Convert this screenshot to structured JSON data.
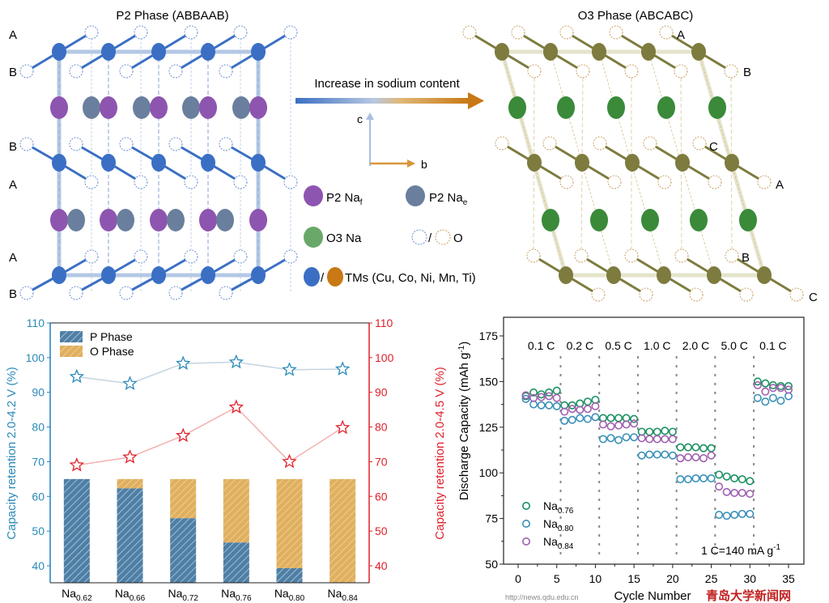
{
  "diagram": {
    "p2_title": "P2 Phase (ABBAAB)",
    "o3_title": "O3 Phase (ABCABC)",
    "p2_layer_labels": [
      "A",
      "B",
      "B",
      "A",
      "A",
      "B"
    ],
    "o3_layer_labels": [
      "A",
      "B",
      "C",
      "A",
      "B",
      "C"
    ],
    "arrow_label": "Increase in sodium content",
    "axis_c": "c",
    "axis_b": "b",
    "legend": {
      "p2_naf": "P2 Na",
      "p2_naf_sub": "f",
      "p2_nae": "P2 Na",
      "p2_nae_sub": "e",
      "o3_na": "O3 Na",
      "slash": "/",
      "o_label": "O",
      "tm_label": "TMs (Cu, Co, Ni, Mn, Ti)"
    },
    "colors": {
      "p2_tm": "#3a6fc4",
      "o3_tm": "#7d7b3e",
      "p2_naf": "#8e55b0",
      "p2_nae": "#6a7f9e",
      "o3_na": "#3a8a3a",
      "tm_orange": "#c87814",
      "o_p2": "#6a8fd0",
      "o_o3": "#c9a060"
    }
  },
  "chart_data": [
    {
      "type": "bar+line",
      "categories": [
        "Na",
        "Na",
        "Na",
        "Na",
        "Na",
        "Na"
      ],
      "category_subs": [
        "0.62",
        "0.66",
        "0.72",
        "0.76",
        "0.80",
        "0.84"
      ],
      "ylabel_left": "Capacity retention 2.0-4.2 V (%)",
      "ylabel_right": "Capacity retention 2.0-4.5 V (%)",
      "ylim": [
        35,
        110
      ],
      "yticks": [
        40,
        50,
        60,
        70,
        80,
        90,
        100,
        110
      ],
      "legend": [
        "P Phase",
        "O Phase"
      ],
      "legend_placement": "top-left",
      "bars": {
        "top": 65,
        "p_phase_top": [
          65,
          62.3,
          53.7,
          46.7,
          39.3,
          35
        ]
      },
      "series": [
        {
          "axis": "left",
          "color": "#2a8ab8",
          "values": [
            94.5,
            92.5,
            98.3,
            98.7,
            96.5,
            96.7
          ]
        },
        {
          "axis": "right",
          "color": "#e0202a",
          "values": [
            69.0,
            71.3,
            77.5,
            85.7,
            70.0,
            79.8
          ]
        }
      ],
      "colors": {
        "p_phase": "#4f7fa5",
        "o_phase": "#e0b060",
        "left_axis": "#1f7fc0",
        "right_axis": "#e0202a"
      }
    },
    {
      "type": "scatter",
      "xlabel": "Cycle Number",
      "ylabel": "Discharge Capacity (mAh g",
      "ylabel_sup": "-1",
      "ylabel_end": ")",
      "xlim": [
        -2,
        37
      ],
      "ylim": [
        50,
        184
      ],
      "xticks": [
        0,
        5,
        10,
        15,
        20,
        25,
        30,
        35
      ],
      "yticks": [
        50,
        75,
        100,
        125,
        150,
        175
      ],
      "rate_labels": [
        "0.1 C",
        "0.2 C",
        "0.5 C",
        "1.0 C",
        "2.0 C",
        "5.0 C",
        "0.1 C"
      ],
      "annotation": "1 C=140 mA g",
      "annotation_sup": "-1",
      "legend_placement": "bottom-left",
      "x": [
        1,
        2,
        3,
        4,
        5,
        6,
        7,
        8,
        9,
        10,
        11,
        12,
        13,
        14,
        15,
        16,
        17,
        18,
        19,
        20,
        21,
        22,
        23,
        24,
        25,
        26,
        27,
        28,
        29,
        30,
        31,
        32,
        33,
        34,
        35
      ],
      "series": [
        {
          "name": "Na",
          "sub": "0.76",
          "color": "#1a9060",
          "values": [
            142,
            144,
            143,
            144,
            145,
            137,
            137,
            138,
            139,
            140,
            130,
            130,
            130,
            130,
            129.5,
            122.5,
            122.5,
            122.5,
            123,
            122.5,
            114,
            114,
            114,
            113.5,
            113.5,
            99,
            98,
            97,
            96.5,
            95.5,
            150,
            149,
            148,
            147.5,
            147.5
          ]
        },
        {
          "name": "Na",
          "sub": "0.80",
          "color": "#3a90b8",
          "values": [
            140.5,
            137.5,
            137,
            137,
            136.5,
            128.5,
            129,
            130,
            129.5,
            130.5,
            118.5,
            119,
            118,
            119.5,
            119.5,
            109.5,
            110,
            110,
            110,
            109.5,
            96.5,
            96.5,
            97,
            97,
            97,
            77,
            76.5,
            77,
            77.5,
            77.5,
            141,
            139,
            141,
            139.5,
            142
          ]
        },
        {
          "name": "Na",
          "sub": "0.84",
          "color": "#a060b0",
          "values": [
            142.5,
            141,
            141.5,
            142,
            141,
            133.5,
            135,
            134.5,
            135,
            136.5,
            126.5,
            125.5,
            126,
            126.5,
            127,
            119,
            118.5,
            118.5,
            118.5,
            118.5,
            108,
            108.5,
            108.5,
            108,
            109.5,
            92.5,
            89.5,
            89,
            89,
            88.5,
            148,
            144.5,
            146.5,
            146.5,
            145.5
          ]
        }
      ]
    }
  ],
  "watermark": {
    "text": "青岛大学新闻网",
    "url": "http://news.qdu.edu.cn"
  }
}
